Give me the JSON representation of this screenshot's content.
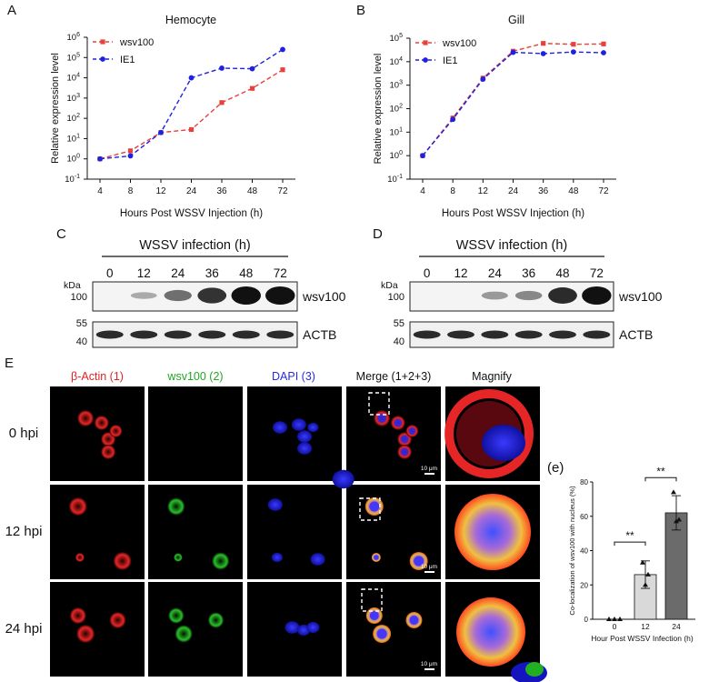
{
  "panels": {
    "A": {
      "letter": "A"
    },
    "B": {
      "letter": "B"
    },
    "C": {
      "letter": "C"
    },
    "D": {
      "letter": "D"
    },
    "E": {
      "letter": "E"
    },
    "e": {
      "letter": "(e)"
    }
  },
  "chart_data": [
    {
      "type": "line",
      "panel": "A",
      "title": "Hemocyte",
      "xlabel": "Hours Post WSSV Injection (h)",
      "ylabel": "Relative expression level",
      "yscale": "log",
      "ylim": [
        0.1,
        1000000
      ],
      "yticks": [
        "10",
        "10",
        "10",
        "10",
        "10",
        "10",
        "10",
        "10"
      ],
      "yexps": [
        "-1",
        "0",
        "1",
        "2",
        "3",
        "4",
        "5",
        "6"
      ],
      "categories": [
        "4",
        "8",
        "12",
        "24",
        "36",
        "48",
        "72"
      ],
      "legend": "top-left",
      "series": [
        {
          "name": "wsv100",
          "color": "#e8403a",
          "marker": "square",
          "values": [
            1,
            2.5,
            20,
            28,
            600,
            3000,
            25000
          ]
        },
        {
          "name": "IE1",
          "color": "#2020e0",
          "marker": "circle",
          "values": [
            1,
            1.4,
            20,
            10000,
            30000,
            28000,
            250000
          ]
        }
      ]
    },
    {
      "type": "line",
      "panel": "B",
      "title": "Gill",
      "xlabel": "Hours Post WSSV Injection (h)",
      "ylabel": "Relative expression level",
      "yscale": "log",
      "ylim": [
        0.1,
        100000
      ],
      "yticks": [
        "10",
        "10",
        "10",
        "10",
        "10",
        "10",
        "10"
      ],
      "yexps": [
        "-1",
        "0",
        "1",
        "2",
        "3",
        "4",
        "5"
      ],
      "categories": [
        "4",
        "8",
        "12",
        "24",
        "36",
        "48",
        "72"
      ],
      "legend": "top-left",
      "series": [
        {
          "name": "wsv100",
          "color": "#e8403a",
          "marker": "square",
          "values": [
            1,
            40,
            2000,
            28000,
            60000,
            55000,
            57000
          ]
        },
        {
          "name": "IE1",
          "color": "#2020e0",
          "marker": "circle",
          "values": [
            1,
            35,
            1800,
            25000,
            22000,
            26000,
            24000
          ]
        }
      ]
    },
    {
      "type": "bar",
      "panel": "(e)",
      "ylabel": "Co-localization of wsv100 with nucleus (%)",
      "xlabel": "Hour Post WSSV Infection (h)",
      "categories": [
        "0",
        "12",
        "24"
      ],
      "values": [
        0,
        26,
        62
      ],
      "errors": [
        0,
        8,
        10
      ],
      "points": [
        [
          0,
          0,
          0
        ],
        [
          33,
          20,
          26
        ],
        [
          74,
          57,
          58
        ]
      ],
      "ylim": [
        0,
        80
      ],
      "yticks": [
        "0",
        "20",
        "40",
        "60",
        "80"
      ],
      "significance": [
        "**",
        "**"
      ]
    }
  ],
  "blots": {
    "C": {
      "header": "WSSV infection (h)",
      "lanes": [
        "0",
        "12",
        "24",
        "36",
        "48",
        "72"
      ],
      "kda": "kDa",
      "marker_top": "100",
      "marker_bottom": [
        "55",
        "40"
      ],
      "target": "wsv100",
      "control": "ACTB",
      "intensity": [
        0,
        0.1,
        0.45,
        0.8,
        1,
        1
      ]
    },
    "D": {
      "header": "WSSV infection (h)",
      "lanes": [
        "0",
        "12",
        "24",
        "36",
        "48",
        "72"
      ],
      "kda": "kDa",
      "marker_top": "100",
      "marker_bottom": [
        "55",
        "40"
      ],
      "target": "wsv100",
      "control": "ACTB",
      "intensity": [
        0,
        0,
        0.2,
        0.3,
        0.85,
        1
      ]
    }
  },
  "microscopy": {
    "columns": [
      {
        "label": "β-Actin (1)",
        "color": "#e52222"
      },
      {
        "label": "wsv100 (2)",
        "color": "#22a722"
      },
      {
        "label": "DAPI (3)",
        "color": "#2a2ae0"
      },
      {
        "label": "Merge (1+2+3)",
        "color": "#111111"
      },
      {
        "label": "Magnify",
        "color": "#111111"
      }
    ],
    "rows": [
      "0 hpi",
      "12 hpi",
      "24 hpi"
    ],
    "scale_bar": "10 μm"
  }
}
